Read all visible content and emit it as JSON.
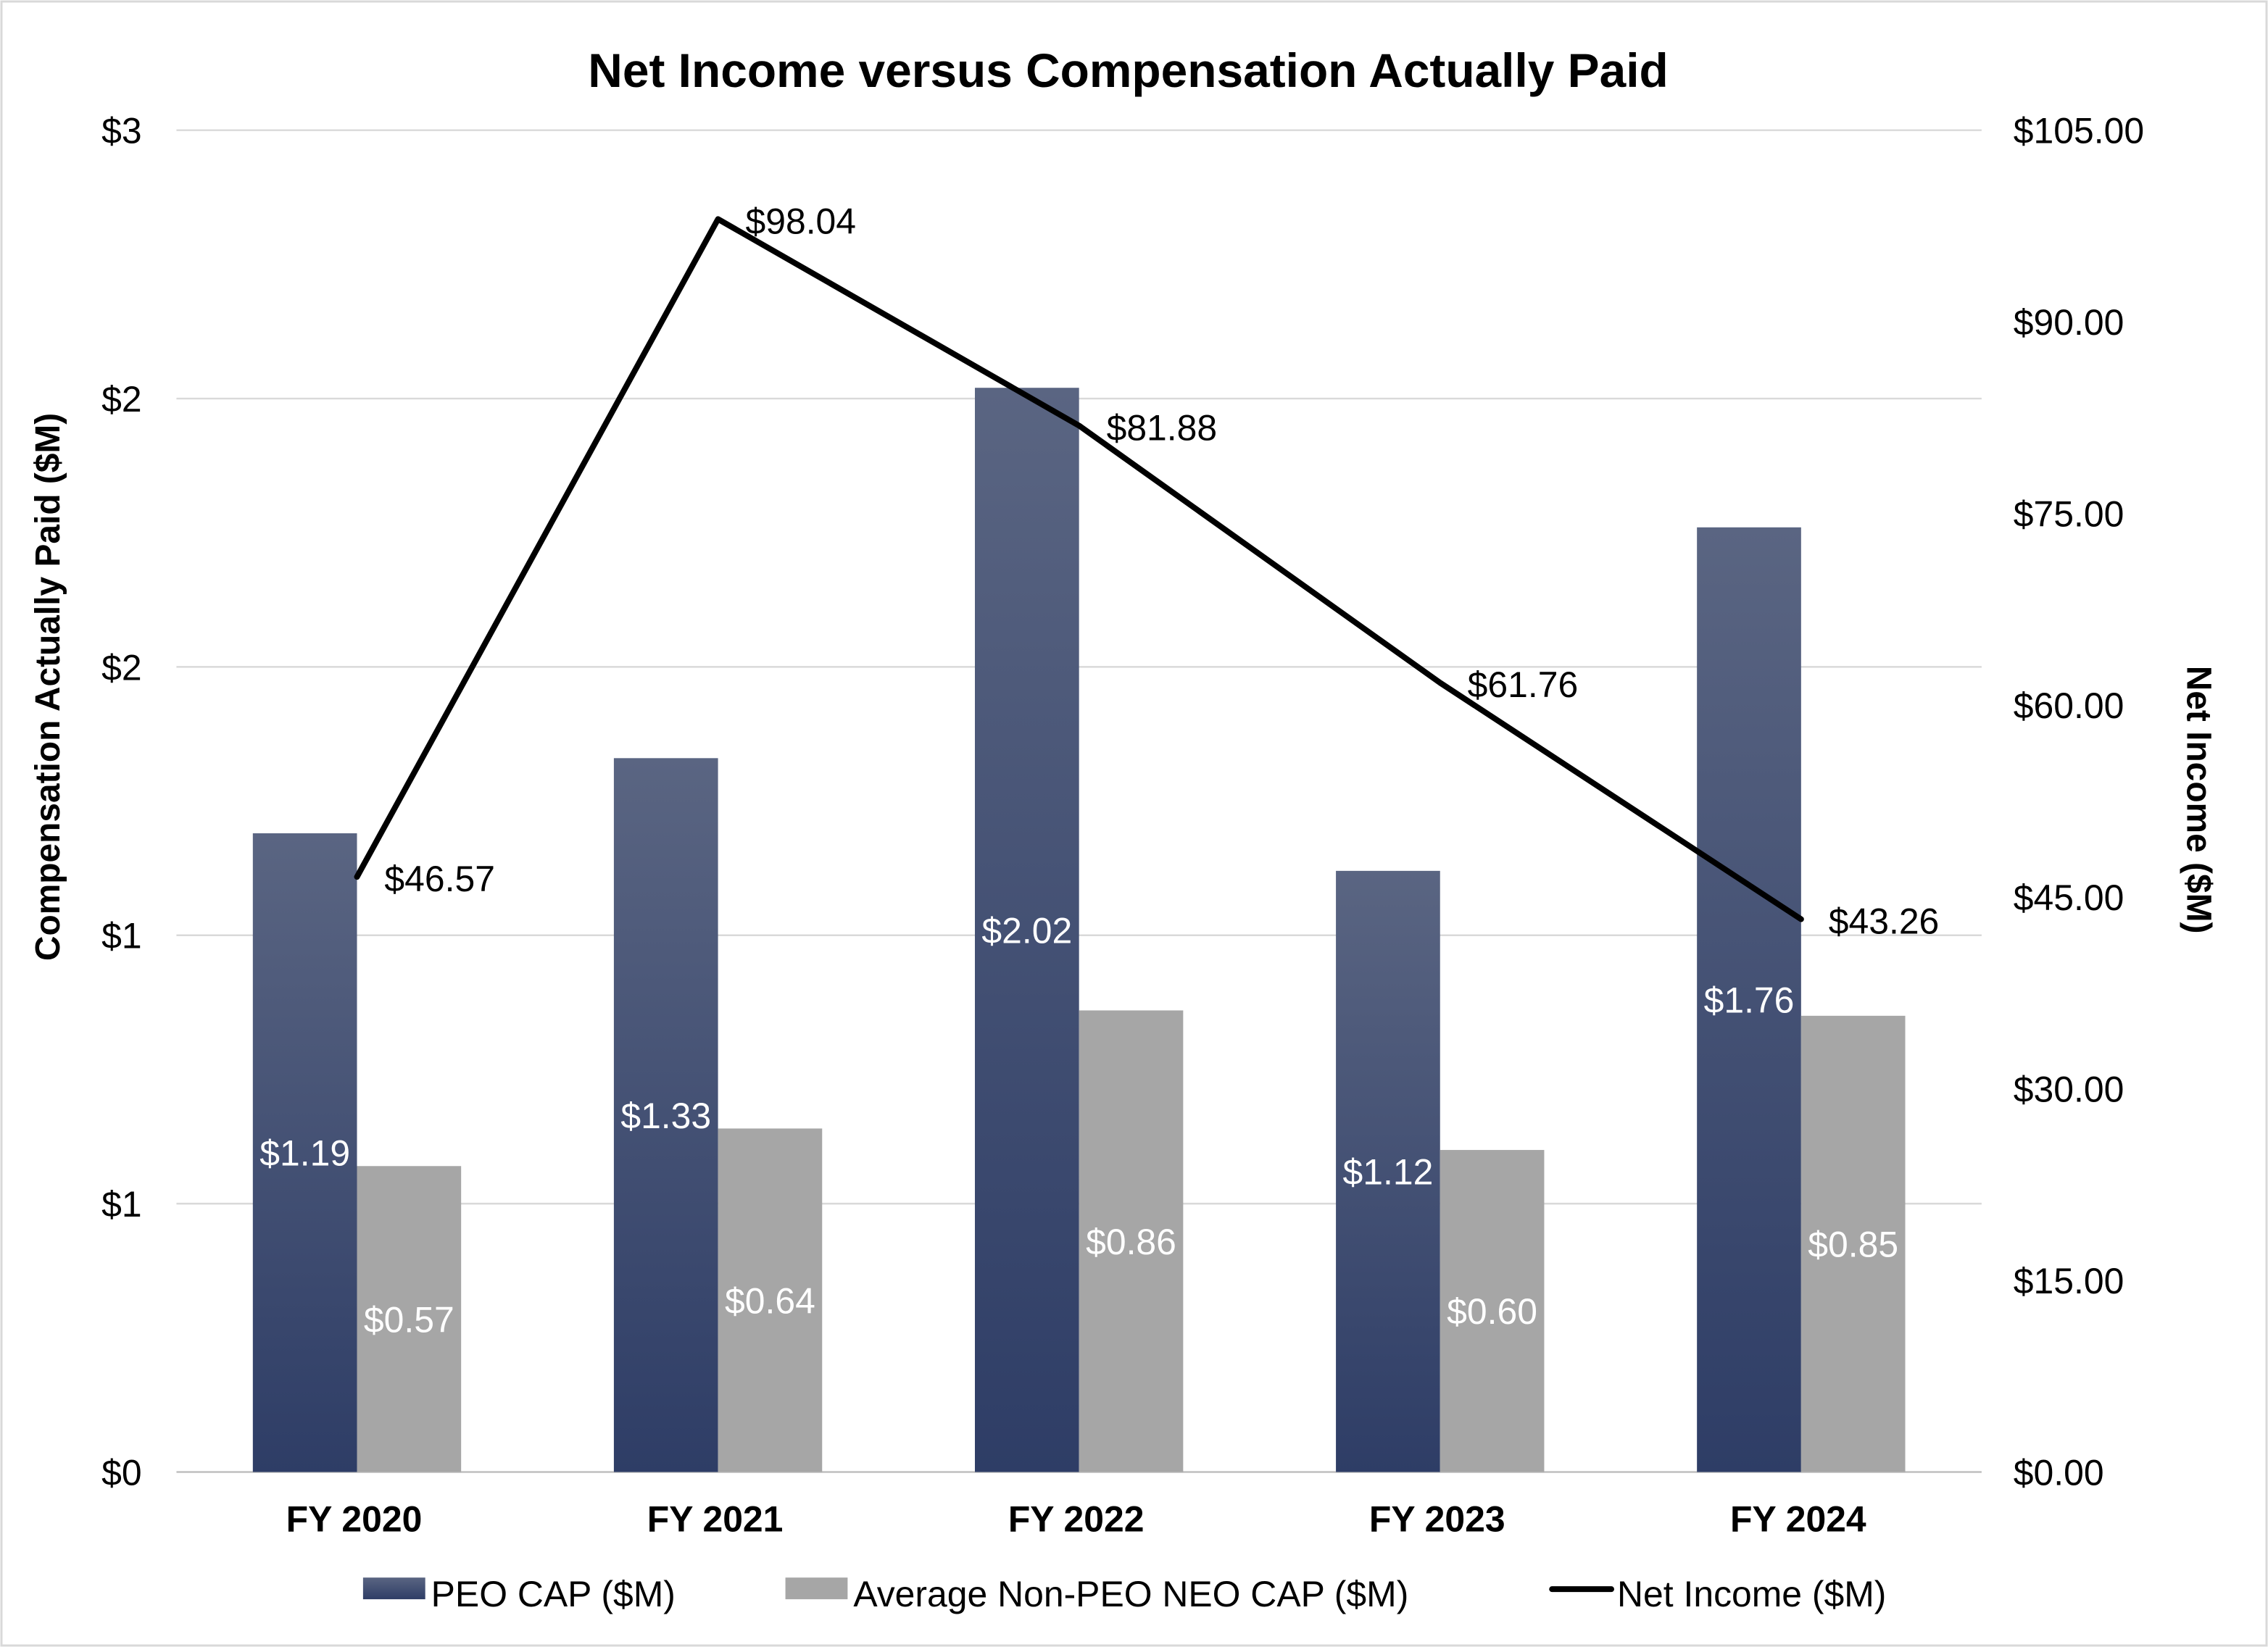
{
  "chart_data": {
    "type": "bar",
    "title": "Net Income versus Compensation Actually Paid",
    "categories": [
      "FY 2020",
      "FY 2021",
      "FY 2022",
      "FY 2023",
      "FY 2024"
    ],
    "y_left": {
      "label": "Compensation Actually Paid ($M)",
      "range": [
        0,
        2.5
      ],
      "tick_values": [
        0,
        0.5,
        1,
        1.5,
        2,
        2.5
      ],
      "tick_labels": [
        "$0",
        "$1",
        "$1",
        "$2",
        "$2",
        "$3"
      ]
    },
    "y_right": {
      "label": "Net Income ($M)",
      "range": [
        0,
        105
      ],
      "tick_values": [
        0,
        15,
        30,
        45,
        60,
        75,
        90,
        105
      ],
      "tick_labels": [
        "$0.00",
        "$15.00",
        "$30.00",
        "$45.00",
        "$60.00",
        "$75.00",
        "$90.00",
        "$105.00"
      ]
    },
    "grid": true,
    "legend_position": "bottom",
    "series": [
      {
        "name": "PEO CAP ($M)",
        "type": "bar",
        "axis": "left",
        "color": "#334270",
        "color_top": "#5a6582",
        "values": [
          1.19,
          1.33,
          2.02,
          1.12,
          1.76
        ],
        "labels": [
          "$1.19",
          "$1.33",
          "$2.02",
          "$1.12",
          "$1.76"
        ]
      },
      {
        "name": "Average Non-PEO NEO CAP ($M)",
        "type": "bar",
        "axis": "left",
        "color": "#a6a6a6",
        "values": [
          0.57,
          0.64,
          0.86,
          0.6,
          0.85
        ],
        "labels": [
          "$0.57",
          "$0.64",
          "$0.86",
          "$0.60",
          "$0.85"
        ]
      },
      {
        "name": "Net Income ($M)",
        "type": "line",
        "axis": "right",
        "color": "#000000",
        "values": [
          46.57,
          98.04,
          81.88,
          61.76,
          43.26
        ],
        "labels": [
          "$46.57",
          "$98.04",
          "$81.88",
          "$61.76",
          "$43.26"
        ]
      }
    ]
  }
}
